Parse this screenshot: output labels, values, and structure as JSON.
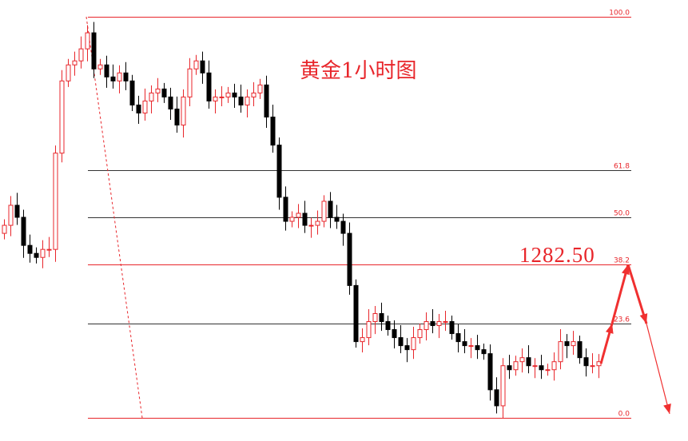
{
  "chart_data": {
    "type": "candlestick",
    "title": "黄金1小时图",
    "annotation_price": "1282.50",
    "annotation_level": "38.2",
    "fib_levels": [
      {
        "label": "100.0",
        "value": 100,
        "color": "#e8262b"
      },
      {
        "label": "61.8",
        "value": 61.8,
        "color": "#333333"
      },
      {
        "label": "50.0",
        "value": 50,
        "color": "#333333"
      },
      {
        "label": "38.2",
        "value": 38.2,
        "color": "#e8262b"
      },
      {
        "label": "23.6",
        "value": 23.6,
        "color": "#333333"
      },
      {
        "label": "0.0",
        "value": 0,
        "color": "#e8262b"
      }
    ],
    "close": [
      48,
      53,
      50,
      43,
      41,
      40,
      42,
      42,
      66,
      84,
      88,
      89,
      92,
      96,
      87,
      88,
      85,
      84,
      86,
      84,
      78,
      76,
      79,
      81,
      82,
      80,
      77,
      73,
      80,
      87,
      89,
      86,
      79,
      80,
      80,
      81,
      80,
      78,
      80,
      81,
      83,
      75,
      68,
      55,
      49,
      50,
      51,
      48,
      48,
      49,
      54,
      50,
      49,
      46,
      33,
      19,
      20,
      24,
      26,
      24,
      22,
      20,
      18,
      17,
      20,
      22,
      24,
      23,
      24,
      24,
      21,
      19,
      18,
      18,
      17,
      16,
      7,
      3,
      13,
      12,
      14,
      15,
      13,
      13,
      12,
      12,
      14,
      19,
      18,
      19,
      15,
      13,
      13,
      14
    ],
    "projection": [
      13.5,
      23.5,
      38.2,
      23.5,
      1
    ],
    "colors": {
      "bull": "#e8262b",
      "bear": "#000000",
      "fib_label": "#e8262b",
      "arrow": "#f03030"
    }
  }
}
